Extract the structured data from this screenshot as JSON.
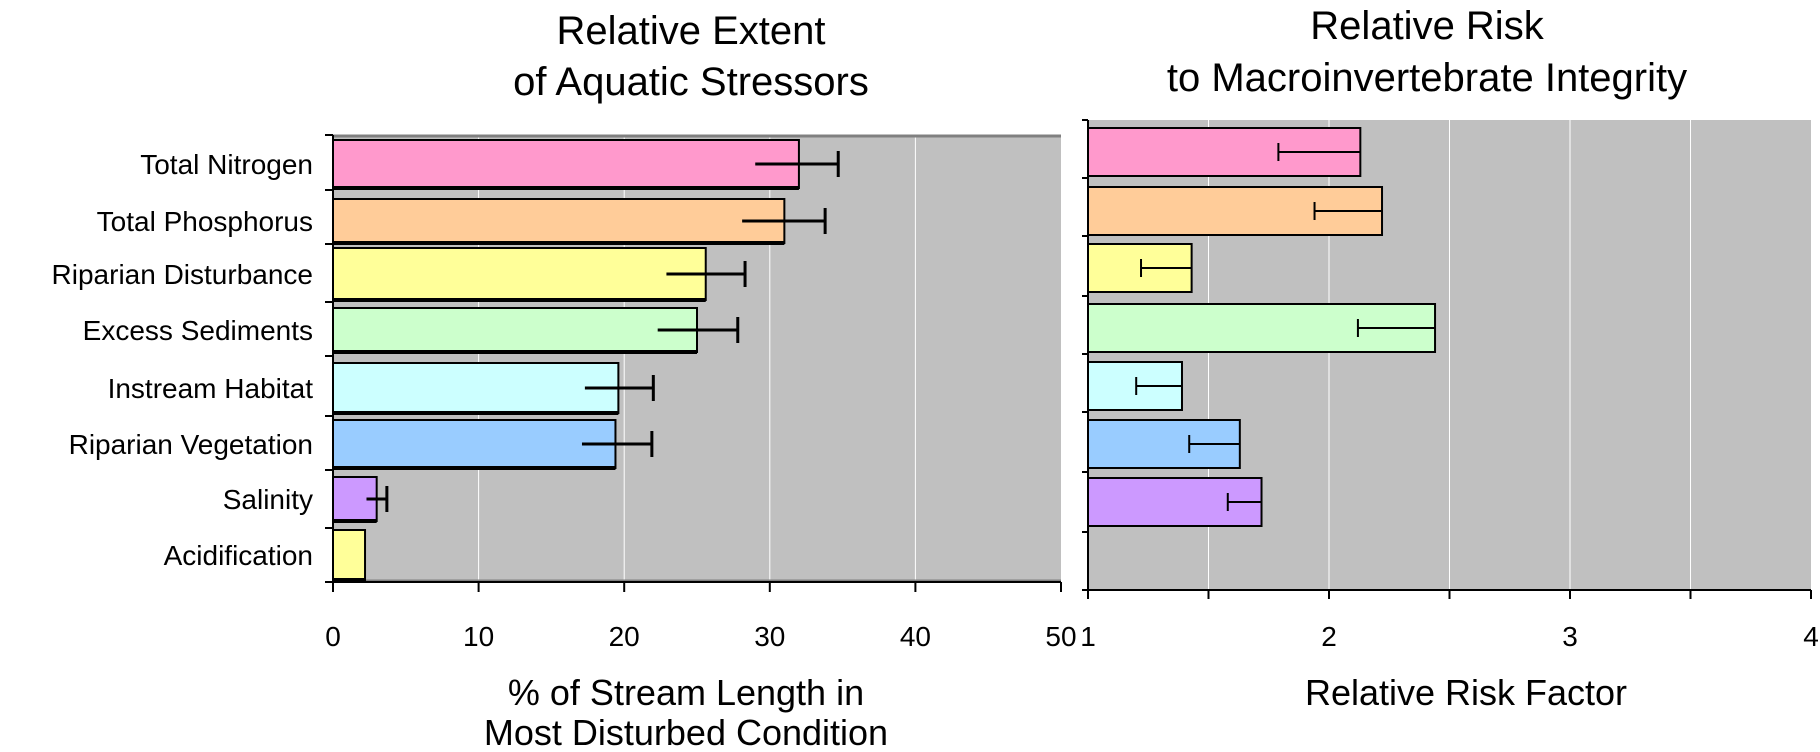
{
  "chart_data": [
    {
      "type": "bar",
      "orientation": "horizontal",
      "title_lines": [
        "Relative Extent",
        "of Aquatic Stressors"
      ],
      "xlabel_lines": [
        "% of Stream Length in",
        "Most Disturbed Condition"
      ],
      "categories": [
        "Total Nitrogen",
        "Total Phosphorus",
        "Riparian Disturbance",
        "Excess Sediments",
        "Instream Habitat",
        "Riparian Vegetation",
        "Salinity",
        "Acidification"
      ],
      "values": [
        32,
        31,
        25.6,
        25,
        19.6,
        19.4,
        3,
        2.2
      ],
      "error_low": [
        29,
        28.1,
        22.9,
        22.3,
        17.3,
        17.1,
        2.3,
        null
      ],
      "error_high": [
        34.7,
        33.8,
        28.3,
        27.8,
        22,
        21.9,
        3.7,
        null
      ],
      "colors": [
        "#ff99cc",
        "#ffcc99",
        "#ffff99",
        "#ccffcc",
        "#ccffff",
        "#99ccff",
        "#cc99ff",
        "#ffff99"
      ],
      "xlim": [
        0,
        50
      ],
      "xticks": [
        0,
        10,
        20,
        30,
        40,
        50
      ],
      "grid": true
    },
    {
      "type": "bar",
      "orientation": "horizontal",
      "title_lines": [
        "Relative Risk",
        "to Macroinvertebrate Integrity"
      ],
      "xlabel_lines": [
        "Relative Risk Factor"
      ],
      "categories": [
        "Total Nitrogen",
        "Total Phosphorus",
        "Riparian Disturbance",
        "Excess Sediments",
        "Instream Habitat",
        "Riparian Vegetation",
        "Salinity",
        "Acidification"
      ],
      "values": [
        2.13,
        2.22,
        1.43,
        2.44,
        1.39,
        1.63,
        1.72,
        null
      ],
      "error_low": [
        1.79,
        1.94,
        1.22,
        2.12,
        1.2,
        1.42,
        1.58,
        null
      ],
      "colors": [
        "#ff99cc",
        "#ffcc99",
        "#ffff99",
        "#ccffcc",
        "#ccffff",
        "#99ccff",
        "#cc99ff",
        "#ffff99"
      ],
      "xlim": [
        1,
        4
      ],
      "xticks": [
        1,
        2,
        3,
        4
      ],
      "grid": true
    }
  ]
}
